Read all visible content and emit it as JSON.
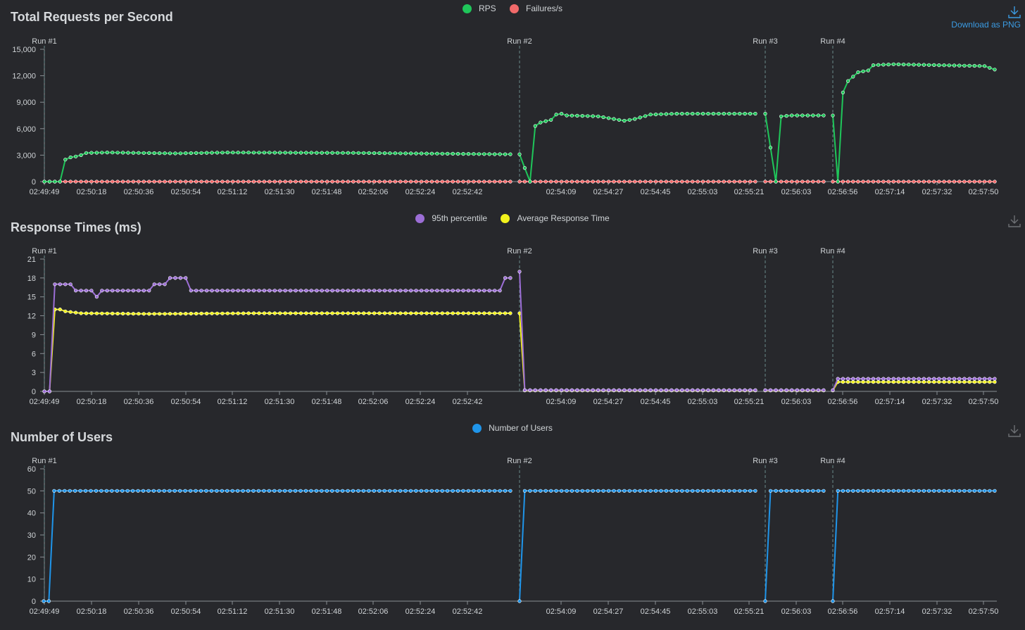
{
  "download_label": "Download as PNG",
  "colors": {
    "rps": "#1fc65a",
    "failures": "#f16a6a",
    "p95": "#9c6ed6",
    "avg": "#f2f21c",
    "users": "#1f95ea",
    "axis": "#8a8f94",
    "runline": "#6a8a8a"
  },
  "chart_data": [
    {
      "type": "line",
      "title": "Total Requests per Second",
      "legend": [
        "RPS",
        "Failures/s"
      ],
      "y_ticks": [
        "0",
        "3,000",
        "6,000",
        "9,000",
        "12,000",
        "15,000"
      ],
      "ylim": [
        0,
        15000
      ],
      "x_ticks": [
        "02:49:49",
        "02:50:18",
        "02:50:36",
        "02:50:54",
        "02:51:12",
        "02:51:30",
        "02:51:48",
        "02:52:06",
        "02:52:24",
        "02:52:42",
        "02:54:09",
        "02:54:27",
        "02:54:45",
        "02:55:03",
        "02:55:21",
        "02:56:03",
        "02:56:56",
        "02:57:14",
        "02:57:32",
        "02:57:50"
      ],
      "runs": [
        "Run #1",
        "Run #2",
        "Run #3",
        "Run #4"
      ],
      "series": [
        {
          "name": "RPS",
          "segments": [
            {
              "run": 1,
              "count": 90,
              "profile": [
                [
                  0,
                  0
                ],
                [
                  3,
                  0
                ],
                [
                  4,
                  2500
                ],
                [
                  5,
                  2750
                ],
                [
                  6,
                  2850
                ],
                [
                  7,
                  3000
                ],
                [
                  8,
                  3250
                ],
                [
                  12,
                  3300
                ],
                [
                  25,
                  3200
                ],
                [
                  35,
                  3300
                ],
                [
                  60,
                  3250
                ],
                [
                  89,
                  3100
                ]
              ]
            },
            {
              "run": 2,
              "count": 46,
              "profile": [
                [
                  0,
                  3100
                ],
                [
                  2,
                  0
                ],
                [
                  3,
                  6300
                ],
                [
                  4,
                  6700
                ],
                [
                  6,
                  7000
                ],
                [
                  7,
                  7600
                ],
                [
                  8,
                  7700
                ],
                [
                  9,
                  7500
                ],
                [
                  15,
                  7400
                ],
                [
                  20,
                  6900
                ],
                [
                  22,
                  7100
                ],
                [
                  25,
                  7600
                ],
                [
                  30,
                  7700
                ],
                [
                  45,
                  7700
                ]
              ]
            },
            {
              "run": 3,
              "count": 12,
              "profile": [
                [
                  0,
                  7700
                ],
                [
                  2,
                  0
                ],
                [
                  3,
                  7400
                ],
                [
                  5,
                  7500
                ],
                [
                  11,
                  7500
                ]
              ]
            },
            {
              "run": 4,
              "count": 33,
              "profile": [
                [
                  0,
                  7500
                ],
                [
                  1,
                  0
                ],
                [
                  2,
                  10100
                ],
                [
                  3,
                  11400
                ],
                [
                  5,
                  12400
                ],
                [
                  7,
                  12600
                ],
                [
                  8,
                  13200
                ],
                [
                  12,
                  13300
                ],
                [
                  30,
                  13100
                ],
                [
                  32,
                  12700
                ]
              ]
            }
          ]
        },
        {
          "name": "Failures/s",
          "segments": [
            {
              "run": 1,
              "count": 90,
              "profile": [
                [
                  0,
                  0
                ],
                [
                  89,
                  0
                ]
              ]
            },
            {
              "run": 2,
              "count": 46,
              "profile": [
                [
                  0,
                  0
                ],
                [
                  45,
                  0
                ]
              ]
            },
            {
              "run": 3,
              "count": 12,
              "profile": [
                [
                  0,
                  0
                ],
                [
                  11,
                  0
                ]
              ]
            },
            {
              "run": 4,
              "count": 33,
              "profile": [
                [
                  0,
                  0
                ],
                [
                  32,
                  0
                ]
              ]
            }
          ]
        }
      ]
    },
    {
      "type": "line",
      "title": "Response Times (ms)",
      "legend": [
        "95th percentile",
        "Average Response Time"
      ],
      "y_ticks": [
        "0",
        "3",
        "6",
        "9",
        "12",
        "15",
        "18",
        "21"
      ],
      "ylim": [
        0,
        21
      ],
      "x_ticks": [
        "02:49:49",
        "02:50:18",
        "02:50:36",
        "02:50:54",
        "02:51:12",
        "02:51:30",
        "02:51:48",
        "02:52:06",
        "02:52:24",
        "02:52:42",
        "02:54:09",
        "02:54:27",
        "02:54:45",
        "02:55:03",
        "02:55:21",
        "02:56:03",
        "02:56:56",
        "02:57:14",
        "02:57:32",
        "02:57:50"
      ],
      "runs": [
        "Run #1",
        "Run #2",
        "Run #3",
        "Run #4"
      ],
      "series": [
        {
          "name": "95th percentile",
          "segments": [
            {
              "run": 1,
              "count": 90,
              "profile": [
                [
                  0,
                  0
                ],
                [
                  1,
                  0
                ],
                [
                  2,
                  17
                ],
                [
                  5,
                  17
                ],
                [
                  6,
                  16
                ],
                [
                  9,
                  16
                ],
                [
                  10,
                  15
                ],
                [
                  11,
                  16
                ],
                [
                  20,
                  16
                ],
                [
                  21,
                  17
                ],
                [
                  23,
                  17
                ],
                [
                  24,
                  18
                ],
                [
                  27,
                  18
                ],
                [
                  28,
                  16
                ],
                [
                  87,
                  16
                ],
                [
                  88,
                  18
                ],
                [
                  89,
                  18
                ]
              ]
            },
            {
              "run": 2,
              "count": 46,
              "profile": [
                [
                  0,
                  19
                ],
                [
                  1,
                  0.2
                ],
                [
                  45,
                  0.2
                ]
              ]
            },
            {
              "run": 3,
              "count": 12,
              "profile": [
                [
                  0,
                  0.2
                ],
                [
                  11,
                  0.2
                ]
              ]
            },
            {
              "run": 4,
              "count": 33,
              "profile": [
                [
                  0,
                  0.2
                ],
                [
                  1,
                  2
                ],
                [
                  32,
                  2
                ]
              ]
            }
          ]
        },
        {
          "name": "Average Response Time",
          "segments": [
            {
              "run": 1,
              "count": 90,
              "profile": [
                [
                  0,
                  0
                ],
                [
                  1,
                  0
                ],
                [
                  2,
                  13
                ],
                [
                  3,
                  13
                ],
                [
                  4,
                  12.7
                ],
                [
                  7,
                  12.4
                ],
                [
                  20,
                  12.3
                ],
                [
                  40,
                  12.4
                ],
                [
                  89,
                  12.4
                ]
              ]
            },
            {
              "run": 2,
              "count": 46,
              "profile": [
                [
                  0,
                  12.4
                ],
                [
                  1,
                  0.15
                ],
                [
                  45,
                  0.15
                ]
              ]
            },
            {
              "run": 3,
              "count": 12,
              "profile": [
                [
                  0,
                  0.15
                ],
                [
                  11,
                  0.15
                ]
              ]
            },
            {
              "run": 4,
              "count": 33,
              "profile": [
                [
                  0,
                  0.15
                ],
                [
                  1,
                  1.5
                ],
                [
                  32,
                  1.5
                ]
              ]
            }
          ]
        }
      ]
    },
    {
      "type": "line",
      "title": "Number of Users",
      "legend": [
        "Number of Users"
      ],
      "y_ticks": [
        "0",
        "10",
        "20",
        "30",
        "40",
        "50",
        "60"
      ],
      "ylim": [
        0,
        60
      ],
      "x_ticks": [
        "02:49:49",
        "02:50:18",
        "02:50:36",
        "02:50:54",
        "02:51:12",
        "02:51:30",
        "02:51:48",
        "02:52:06",
        "02:52:24",
        "02:52:42",
        "02:54:09",
        "02:54:27",
        "02:54:45",
        "02:55:03",
        "02:55:21",
        "02:56:03",
        "02:56:56",
        "02:57:14",
        "02:57:32",
        "02:57:50"
      ],
      "runs": [
        "Run #1",
        "Run #2",
        "Run #3",
        "Run #4"
      ],
      "series": [
        {
          "name": "Number of Users",
          "segments": [
            {
              "run": 1,
              "count": 90,
              "profile": [
                [
                  0,
                  0
                ],
                [
                  1,
                  0
                ],
                [
                  2,
                  50
                ],
                [
                  89,
                  50
                ]
              ]
            },
            {
              "run": 2,
              "count": 46,
              "profile": [
                [
                  0,
                  0
                ],
                [
                  1,
                  50
                ],
                [
                  45,
                  50
                ]
              ]
            },
            {
              "run": 3,
              "count": 12,
              "profile": [
                [
                  0,
                  0
                ],
                [
                  1,
                  50
                ],
                [
                  11,
                  50
                ]
              ]
            },
            {
              "run": 4,
              "count": 33,
              "profile": [
                [
                  0,
                  0
                ],
                [
                  1,
                  50
                ],
                [
                  32,
                  50
                ]
              ]
            }
          ]
        }
      ]
    }
  ]
}
